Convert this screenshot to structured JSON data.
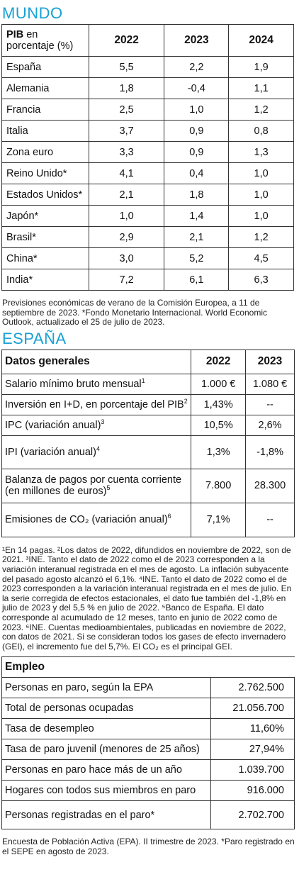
{
  "mundo": {
    "title": "MUNDO",
    "header": {
      "label_bold": "PIB",
      "label_rest": " en porcentaje (%)",
      "years": [
        "2022",
        "2023",
        "2024"
      ]
    },
    "rows": [
      {
        "country": "España",
        "values": [
          "5,5",
          "2,2",
          "1,9"
        ]
      },
      {
        "country": "Alemania",
        "values": [
          "1,8",
          "-0,4",
          "1,1"
        ]
      },
      {
        "country": "Francia",
        "values": [
          "2,5",
          "1,0",
          "1,2"
        ]
      },
      {
        "country": "Italia",
        "values": [
          "3,7",
          "0,9",
          "0,8"
        ]
      },
      {
        "country": "Zona euro",
        "values": [
          "3,3",
          "0,9",
          "1,3"
        ]
      },
      {
        "country": "Reino Unido*",
        "values": [
          "4,1",
          "0,4",
          "1,0"
        ]
      },
      {
        "country": "Estados Unidos*",
        "values": [
          "2,1",
          "1,8",
          "1,0"
        ]
      },
      {
        "country": "Japón*",
        "values": [
          "1,0",
          "1,4",
          "1,0"
        ]
      },
      {
        "country": "Brasil*",
        "values": [
          "2,9",
          "2,1",
          "1,2"
        ]
      },
      {
        "country": "China*",
        "values": [
          "3,0",
          "5,2",
          "4,5"
        ]
      },
      {
        "country": "India*",
        "values": [
          "7,2",
          "6,1",
          "6,3"
        ]
      }
    ],
    "note": "Previsiones económicas de verano de la Comisión Europea, a 11 de septiembre de 2023. *Fondo Monetario Internacional. World Economic Outlook, actualizado el 25 de julio de 2023."
  },
  "espana": {
    "title": "ESPAÑA",
    "header": {
      "label": "Datos generales",
      "years": [
        "2022",
        "2023"
      ]
    },
    "rows": [
      {
        "label": "Salario mínimo bruto mensual",
        "sup": "1",
        "values": [
          "1.000 €",
          "1.080 €"
        ]
      },
      {
        "label": "Inversión en I+D, en porcentaje del PIB",
        "sup": "2",
        "values": [
          "1,43%",
          "--"
        ]
      },
      {
        "label": "IPC (variación anual)",
        "sup": "3",
        "values": [
          "10,5%",
          "2,6%"
        ]
      },
      {
        "label": "IPI (variación anual)",
        "sup": "4",
        "values": [
          "1,3%",
          "-1,8%"
        ]
      },
      {
        "label": "Balanza de pagos por cuenta corriente (en millones de euros)",
        "sup": "5",
        "values": [
          "7.800",
          "28.300"
        ]
      },
      {
        "label": "Emisiones de CO₂  (variación anual)",
        "sup": "6",
        "values": [
          "7,1%",
          "--"
        ]
      }
    ],
    "note": "¹En 14 pagas. ²Los datos de 2022, difundidos en noviembre de 2022, son de 2021. ³INE. Tanto el dato de 2022 como el de 2023 corresponden a la variación interanual registrada en el mes de agosto. La inflación subyacente del pasado agosto alcanzó el 6,1%. ⁴INE. Tanto el dato de 2022 como el de 2023 corresponden a la variación interanual registrada en el mes de julio. En la serie corregida de efectos estacionales, el dato fue también del -1,8% en julio de 2023 y del 5,5 % en julio de 2022. ⁵Banco de España. El dato corresponde al acumulado de 12 meses, tanto en junio de 2022 como de 2023. ⁶INE. Cuentas medioambientales, publicadas en noviembre de 2022, con datos de 2021. Si se consideran todos los gases de efecto invernadero (GEI), el incremento fue del 5,7%. El CO₂ es el principal GEI."
  },
  "empleo": {
    "header": "Empleo",
    "rows": [
      {
        "label": "Personas en paro, según la EPA",
        "value": "2.762.500"
      },
      {
        "label": "Total de personas ocupadas",
        "value": "21.056.700"
      },
      {
        "label": "Tasa de desempleo",
        "value": "11,60%"
      },
      {
        "label": "Tasa de paro juvenil (menores de 25 años)",
        "value": "27,94%"
      },
      {
        "label": "Personas en paro hace más de un año",
        "value": "1.039.700"
      },
      {
        "label": "Hogares con todos sus miembros en paro",
        "value": "916.000"
      },
      {
        "label": "Personas registradas en el paro*",
        "value": "2.702.700"
      }
    ],
    "note": "Encuesta de Población Activa (EPA). II trimestre de 2023. *Paro registrado en el SEPE en agosto de 2023."
  }
}
